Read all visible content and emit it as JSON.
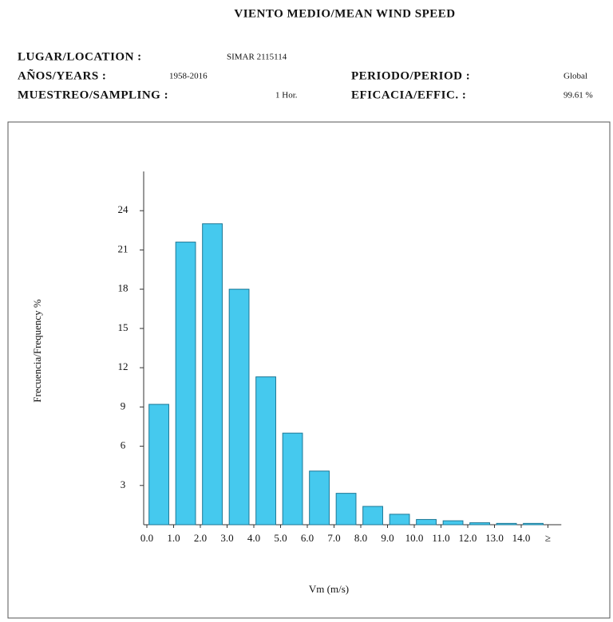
{
  "header": {
    "title": "VIENTO MEDIO/MEAN WIND SPEED",
    "fields": [
      {
        "label": "LUGAR/LOCATION :",
        "value": "SIMAR 2115114"
      },
      {
        "label": "AÑOS/YEARS :",
        "value": "1958-2016"
      },
      {
        "label": "PERIODO/PERIOD :",
        "value": "Global"
      },
      {
        "label": "MUESTREO/SAMPLING :",
        "value": "1 Hor."
      },
      {
        "label": "EFICACIA/EFFIC. :",
        "value": "99.61 %"
      }
    ]
  },
  "chart_data": {
    "type": "histogram",
    "x_label": "Vm (m/s)",
    "y_label": "Frecuencia/Frequency %",
    "bins": [
      0,
      1,
      2,
      3,
      4,
      5,
      6,
      7,
      8,
      9,
      10,
      11,
      12,
      13,
      14,
      15
    ],
    "values": [
      9.2,
      21.6,
      23,
      18,
      11.3,
      7,
      4.1,
      2.4,
      1.4,
      0.8,
      0.4,
      0.3,
      0.15,
      0.1,
      0.1
    ],
    "color": "#45c9ee",
    "xlim": [
      0,
      15.5
    ],
    "ylim": [
      0,
      27
    ],
    "xticks": [
      {
        "value": 0,
        "label": "0.0"
      },
      {
        "value": 1,
        "label": "1.0"
      },
      {
        "value": 2,
        "label": "2.0"
      },
      {
        "value": 3,
        "label": "3.0"
      },
      {
        "value": 4,
        "label": "4.0"
      },
      {
        "value": 5,
        "label": "5.0"
      },
      {
        "value": 6,
        "label": "6.0"
      },
      {
        "value": 7,
        "label": "7.0"
      },
      {
        "value": 8,
        "label": "8.0"
      },
      {
        "value": 9,
        "label": "9.0"
      },
      {
        "value": 10,
        "label": "10.0"
      },
      {
        "value": 11,
        "label": "11.0"
      },
      {
        "value": 12,
        "label": "12.0"
      },
      {
        "value": 13,
        "label": "13.0"
      },
      {
        "value": 14,
        "label": "14.0"
      },
      {
        "value": 15,
        "label": "≥"
      }
    ],
    "yticks": [
      3,
      6,
      9,
      12,
      15,
      18,
      21,
      24
    ]
  }
}
